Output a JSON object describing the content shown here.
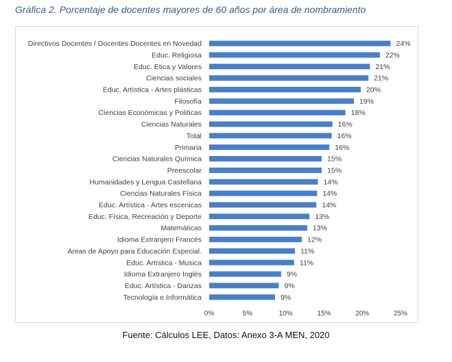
{
  "title": "Gráfica 2. Porcentaje de docentes mayores de 60 años por área de nombramiento",
  "source": "Fuente: Cálculos LEE, Datos: Anexo 3-A MEN, 2020",
  "colors": {
    "bar": "#4a7fc8",
    "frame": "#d9d9d9",
    "title": "#3a5a8c"
  },
  "chart_data": {
    "type": "bar",
    "orientation": "horizontal",
    "categories": [
      "Directivos Docentes / Docentes Docentes en Novedad",
      "Educ. Religiosa",
      "Educ. Etica y Valores",
      "Ciencias sociales",
      "Educ. Artística - Artes plásticas",
      "Filosofía",
      "Ciencias Económicas y Politicas",
      "Ciencias Naturales",
      "Total",
      "Primaria",
      "Ciencias Naturales Química",
      "Preescolar",
      "Humanidades y  Lengua Castellana",
      "Ciencias Naturales Física",
      "Educ. Artística - Artes escenicas",
      "Educ. Física, Recreación y Deporte",
      "Matemáticas",
      "Idioma Extranjero Francés",
      "Areas de Apoyo para Educación Especial.",
      "Educ. Artística - Musica",
      "Idioma Extranjero Inglés",
      "Educ. Artística - Danzas",
      "Tecnología e Informática"
    ],
    "values": [
      23.7,
      22.3,
      21.0,
      20.8,
      19.8,
      18.9,
      17.8,
      16.1,
      16.0,
      15.7,
      14.7,
      14.7,
      14.2,
      14.1,
      14.0,
      13.1,
      12.8,
      12.1,
      11.2,
      11.1,
      9.4,
      9.1,
      8.6
    ],
    "value_labels": [
      "24%",
      "22%",
      "21%",
      "21%",
      "20%",
      "19%",
      "18%",
      "16%",
      "16%",
      "16%",
      "15%",
      "15%",
      "14%",
      "14%",
      "14%",
      "13%",
      "13%",
      "12%",
      "11%",
      "11%",
      "9%",
      "9%",
      "9%"
    ],
    "xticks": [
      "0%",
      "5%",
      "10%",
      "15%",
      "20%",
      "25%"
    ],
    "xlim": [
      0,
      25
    ],
    "grid": false,
    "legend": false
  }
}
